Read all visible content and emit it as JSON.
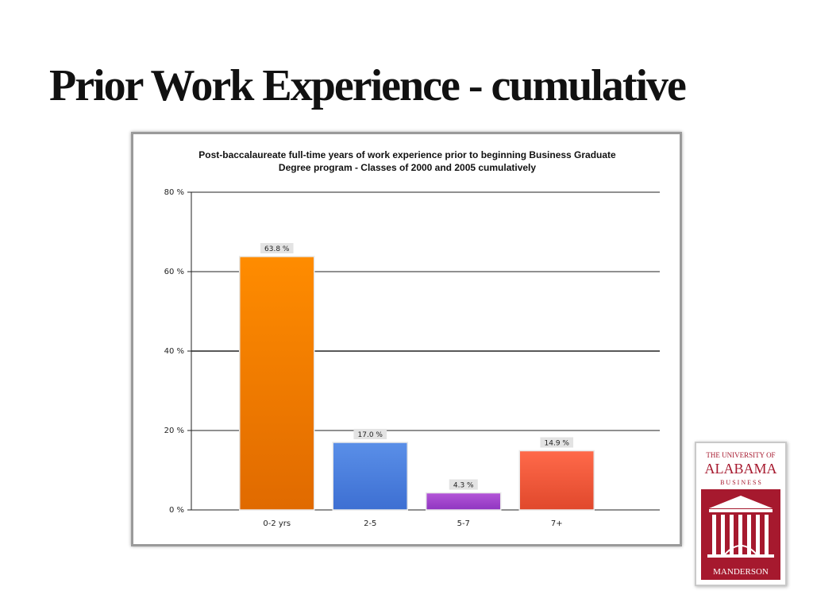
{
  "slide": {
    "title": "Prior Work Experience - cumulative"
  },
  "chart_data": {
    "type": "bar",
    "title_lines": [
      "Post-baccalaureate full-time years of work experience prior to beginning Business Graduate",
      "Degree program - Classes of 2000 and 2005 cumulatively"
    ],
    "categories": [
      "0-2 yrs",
      "2-5",
      "5-7",
      "7+"
    ],
    "values": [
      63.8,
      17.0,
      4.3,
      14.9
    ],
    "data_labels": [
      "63.8 %",
      "17.0 %",
      "4.3 %",
      "14.9 %"
    ],
    "ylim": [
      0,
      80
    ],
    "yticks": [
      0,
      20,
      40,
      60,
      80
    ],
    "ytick_labels": [
      "0 %",
      "20 %",
      "40 %",
      "60 %",
      "80 %"
    ],
    "grid": true,
    "xlabel": "",
    "ylabel": "",
    "bar_colors": [
      [
        "#ff8c00",
        "#e06a00"
      ],
      [
        "#5a8fe8",
        "#3d6fd2"
      ],
      [
        "#b456d8",
        "#8f35c0"
      ],
      [
        "#ff6a4a",
        "#e0482c"
      ]
    ]
  },
  "logo": {
    "line1": "THE UNIVERSITY OF",
    "line2": "ALABAMA",
    "line3": "B U S I N E S S",
    "line4": "MANDERSON",
    "accent": "#a6192e"
  }
}
